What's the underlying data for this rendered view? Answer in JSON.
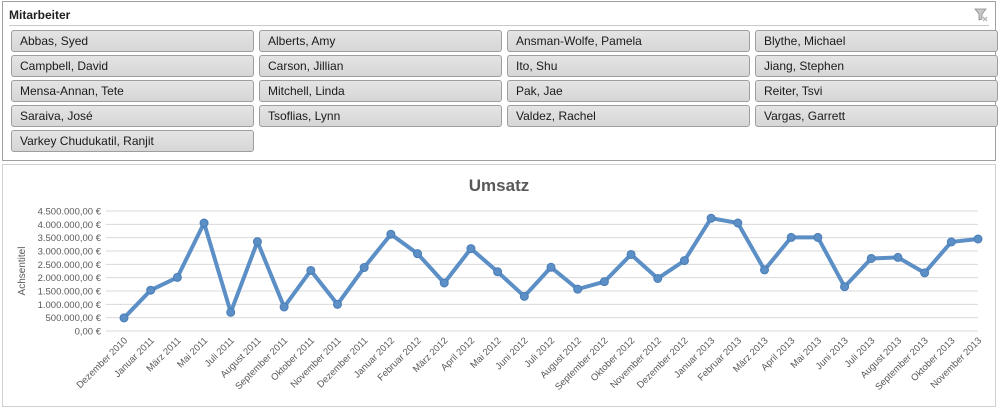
{
  "slicer": {
    "title": "Mitarbeiter",
    "clear_icon": "clear-filter-icon",
    "items": [
      "Abbas, Syed",
      "Alberts, Amy",
      "Ansman-Wolfe, Pamela",
      "Blythe, Michael",
      "Campbell, David",
      "Carson, Jillian",
      "Ito, Shu",
      "Jiang, Stephen",
      "Mensa-Annan, Tete",
      "Mitchell, Linda",
      "Pak, Jae",
      "Reiter, Tsvi",
      "Saraiva, José",
      "Tsoflias, Lynn",
      "Valdez, Rachel",
      "Vargas, Garrett",
      "Varkey Chudukatil, Ranjit"
    ]
  },
  "chart_data": {
    "type": "line",
    "title": "Umsatz",
    "ylabel": "Achsentitel",
    "xlabel": "",
    "ylim": [
      0,
      4500000
    ],
    "ytick_step": 500000,
    "ytick_labels": [
      "0,00 €",
      "500.000,00 €",
      "1.000.000,00 €",
      "1.500.000,00 €",
      "2.000.000,00 €",
      "2.500.000,00 €",
      "3.000.000,00 €",
      "3.500.000,00 €",
      "4.000.000,00 €",
      "4.500.000,00 €"
    ],
    "grid": true,
    "line_color": "#5b8fc6",
    "categories": [
      "Dezember 2010",
      "Januar 2011",
      "März 2011",
      "Mai 2011",
      "Juli 2011",
      "August 2011",
      "September 2011",
      "Oktober 2011",
      "November 2011",
      "Dezember 2011",
      "Januar 2012",
      "Februar 2012",
      "März 2012",
      "April 2012",
      "Mai 2012",
      "Juni 2012",
      "Juli 2012",
      "August 2012",
      "September 2012",
      "Oktober 2012",
      "November 2012",
      "Dezember 2012",
      "Januar 2013",
      "Februar 2013",
      "März 2013",
      "April 2013",
      "Mai 2013",
      "Juni 2013",
      "Juli 2013",
      "August 2013",
      "September 2013",
      "Oktober 2013",
      "November 2013"
    ],
    "values": [
      490000,
      1530000,
      2010000,
      4050000,
      700000,
      3350000,
      900000,
      2270000,
      1000000,
      2380000,
      3630000,
      2900000,
      1800000,
      3090000,
      2220000,
      1300000,
      2390000,
      1570000,
      1850000,
      2870000,
      1970000,
      2640000,
      4230000,
      4050000,
      2290000,
      3510000,
      3510000,
      1660000,
      2720000,
      2760000,
      2180000,
      3340000,
      3450000
    ]
  }
}
